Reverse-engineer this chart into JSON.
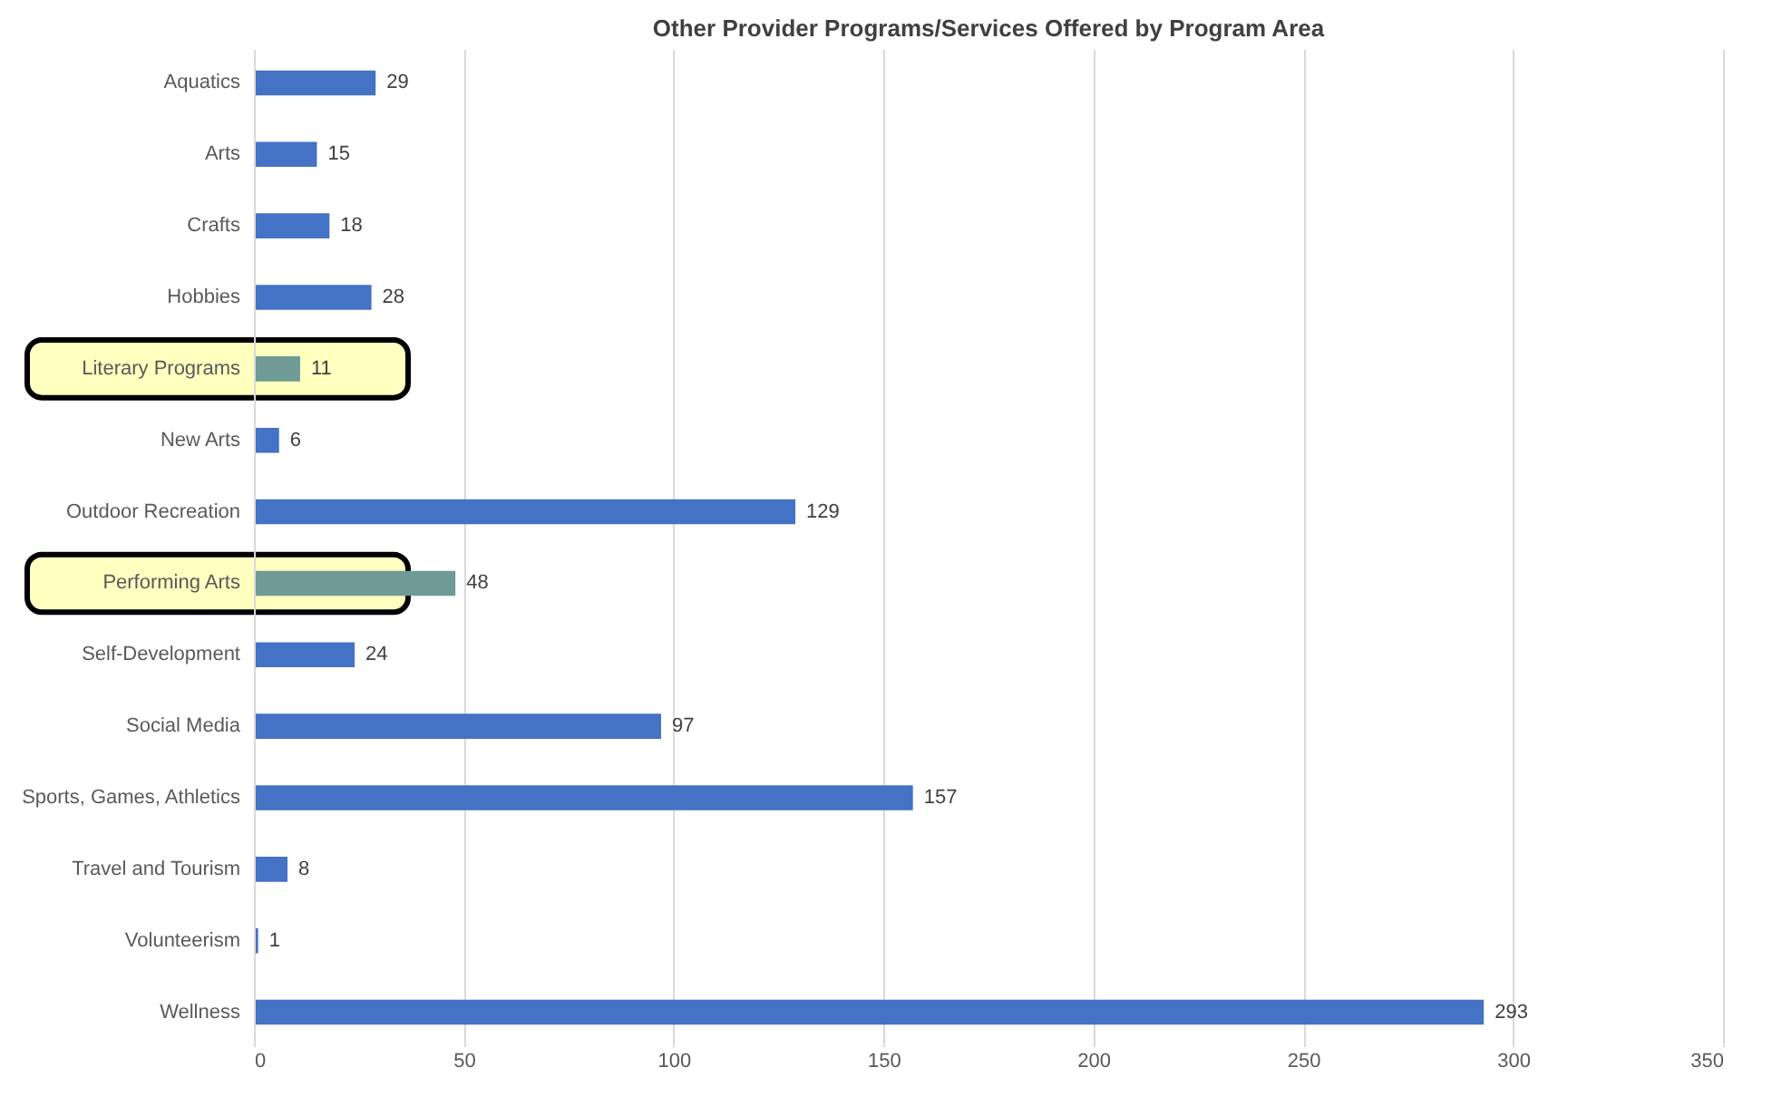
{
  "chart_data": {
    "type": "bar",
    "orientation": "horizontal",
    "title": "Other Provider Programs/Services Offered by Program Area",
    "categories": [
      "Aquatics",
      "Arts",
      "Crafts",
      "Hobbies",
      "Literary Programs",
      "New Arts",
      "Outdoor Recreation",
      "Performing Arts",
      "Self-Development",
      "Social Media",
      "Sports, Games, Athletics",
      "Travel and Tourism",
      "Volunteerism",
      "Wellness"
    ],
    "values": [
      29,
      15,
      18,
      28,
      11,
      6,
      129,
      48,
      24,
      97,
      157,
      8,
      1,
      293
    ],
    "colors": [
      "#4472c4",
      "#4472c4",
      "#4472c4",
      "#4472c4",
      "#6f9a95",
      "#4472c4",
      "#4472c4",
      "#6f9a95",
      "#4472c4",
      "#4472c4",
      "#4472c4",
      "#4472c4",
      "#4472c4",
      "#4472c4"
    ],
    "xlim": [
      0,
      350
    ],
    "xticks": [
      0,
      50,
      100,
      150,
      200,
      250,
      300,
      350
    ],
    "grid": "x",
    "data_labels": true,
    "bands": [
      {
        "axis": "y",
        "from": "Literary Programs",
        "to": "Literary Programs",
        "color": "#ffffc0"
      },
      {
        "axis": "y",
        "from": "Performing Arts",
        "to": "Performing Arts",
        "color": "#ffffc0"
      }
    ]
  }
}
